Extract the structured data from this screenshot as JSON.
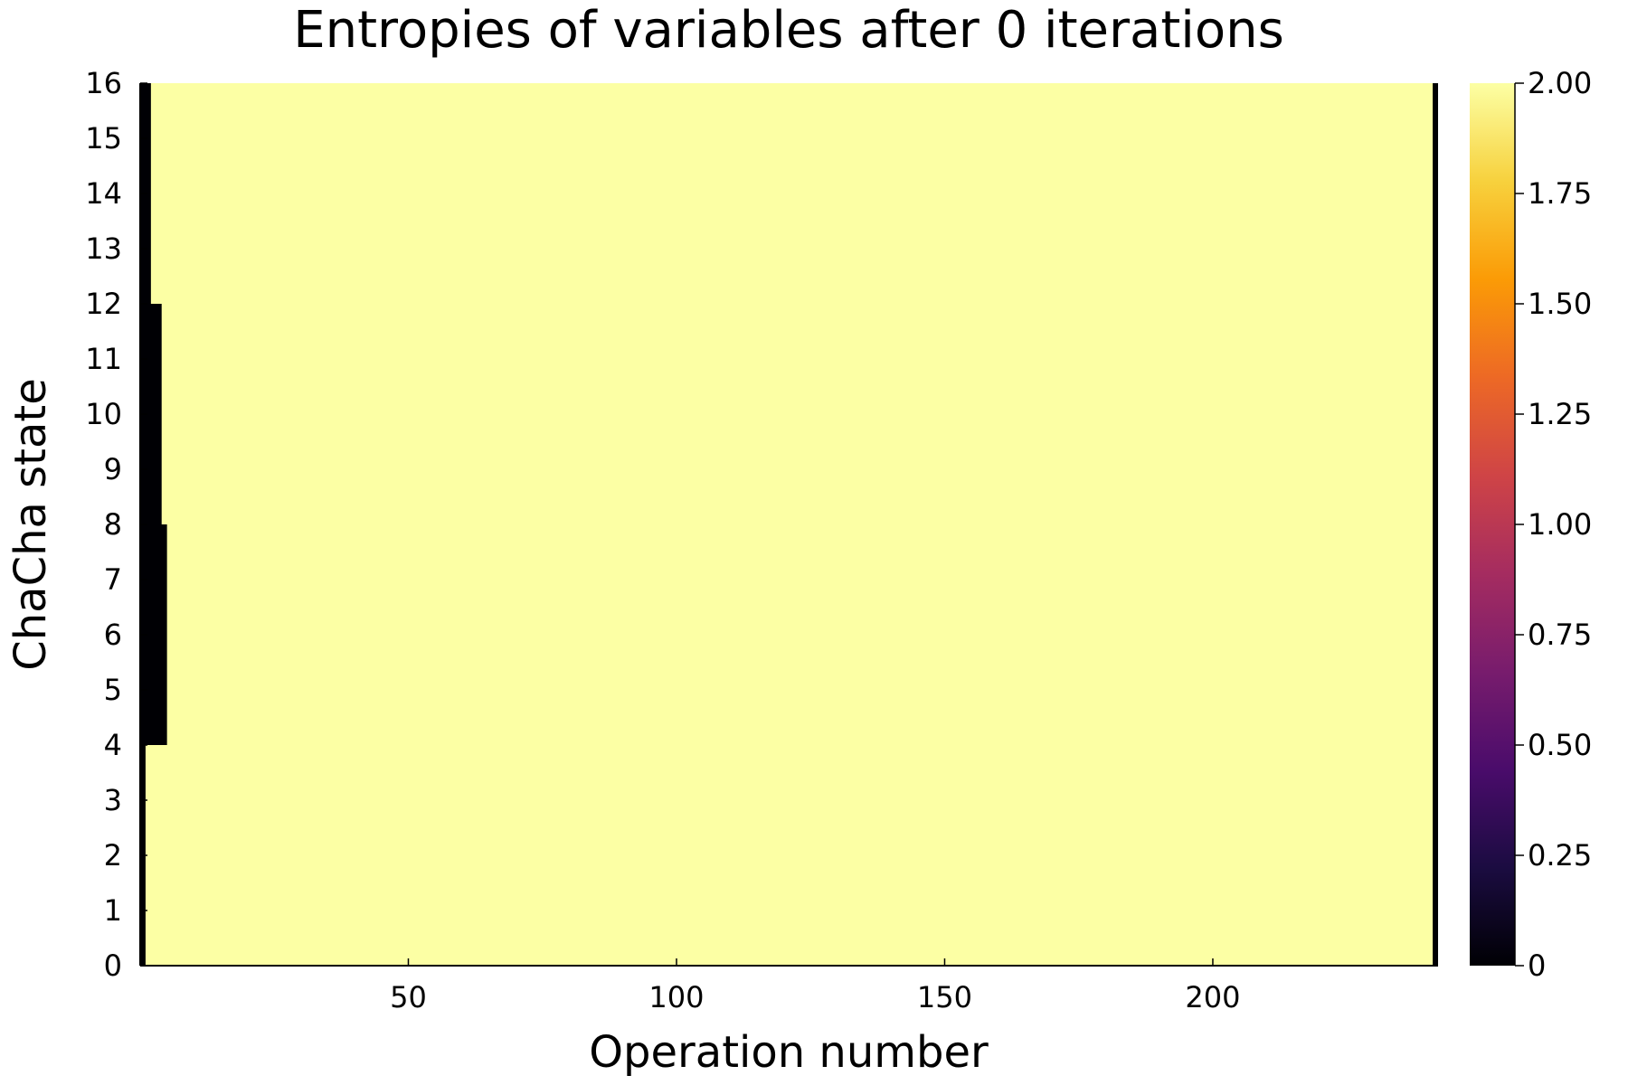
{
  "chart_data": {
    "type": "heatmap",
    "title": "Entropies of variables after 0 iterations",
    "xlabel": "Operation number",
    "ylabel": "ChaCha state",
    "xlim": [
      0,
      242
    ],
    "ylim": [
      0,
      16
    ],
    "x_ticks": [
      50,
      100,
      150,
      200
    ],
    "y_ticks": [
      0,
      1,
      2,
      3,
      4,
      5,
      6,
      7,
      8,
      9,
      10,
      11,
      12,
      13,
      14,
      15,
      16
    ],
    "colorbar": {
      "range": [
        0,
        2.0
      ],
      "ticks": [
        0,
        0.25,
        0.5,
        0.75,
        1.0,
        1.25,
        1.5,
        1.75,
        2.0
      ],
      "tick_labels": [
        "0",
        "0.25",
        "0.50",
        "0.75",
        "1.00",
        "1.25",
        "1.50",
        "1.75",
        "2.00"
      ],
      "colormap": "inferno",
      "colors": [
        "#000004",
        "#1b0c41",
        "#4a0c6b",
        "#781c6d",
        "#a52c60",
        "#cf4446",
        "#ed6925",
        "#fb9b06",
        "#f7d13d",
        "#fcffa4"
      ]
    },
    "background_value": 2.0,
    "regions": [
      {
        "rows": [
          0,
          4
        ],
        "x_range": [
          0,
          1
        ],
        "value": 0
      },
      {
        "rows": [
          4,
          8
        ],
        "x_range": [
          0,
          5
        ],
        "value": 0
      },
      {
        "rows": [
          8,
          12
        ],
        "x_range": [
          0,
          4
        ],
        "value": 0
      },
      {
        "rows": [
          12,
          16
        ],
        "x_range": [
          0,
          2
        ],
        "value": 0
      },
      {
        "rows": [
          0,
          16
        ],
        "x_range": [
          241,
          242
        ],
        "value": 0
      }
    ]
  }
}
